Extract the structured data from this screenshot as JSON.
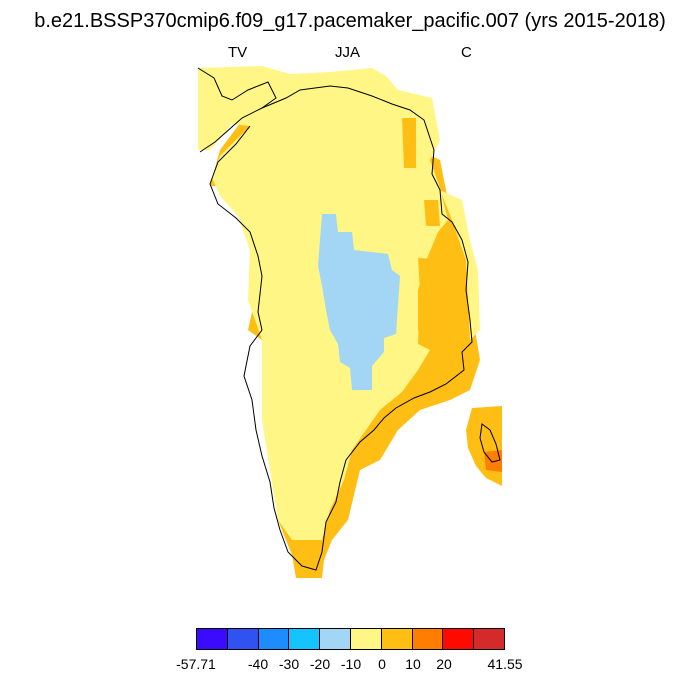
{
  "title": "b.e21.BSSP370cmip6.f09_g17.pacemaker_pacific.007 (yrs 2015-2018)",
  "variable": "TV",
  "season": "JJA",
  "units": "C",
  "colorbar": {
    "colors": [
      "#3b0bff",
      "#2f52f0",
      "#1e8cff",
      "#14c3ff",
      "#a3d6f4",
      "#fff685",
      "#ffbe14",
      "#ff7d00",
      "#ff0a00",
      "#d42a2a"
    ],
    "labels": {
      "t0": "-57.71",
      "t1": "-40",
      "t2": "-30",
      "t3": "-20",
      "t4": "-10",
      "t5": "0",
      "t6": "10",
      "t7": "20",
      "t8": "41.55"
    }
  }
}
